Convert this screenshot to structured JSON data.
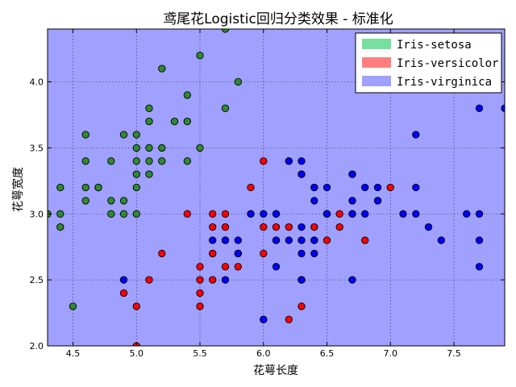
{
  "chart_data": {
    "type": "scatter",
    "title": "鸢尾花Logistic回归分类效果 - 标准化",
    "xlabel": "花萼长度",
    "ylabel": "花萼宽度",
    "xlim": [
      4.3,
      7.9
    ],
    "ylim": [
      2.0,
      4.4
    ],
    "xticks": [
      4.5,
      5.0,
      5.5,
      6.0,
      6.5,
      7.0,
      7.5
    ],
    "yticks": [
      2.0,
      2.5,
      3.0,
      3.5,
      4.0
    ],
    "xtick_labels": [
      "4.5",
      "5.0",
      "5.5",
      "6.0",
      "6.5",
      "7.0",
      "7.5"
    ],
    "ytick_labels": [
      "2.0",
      "2.5",
      "3.0",
      "3.5",
      "4.0"
    ],
    "grid": true,
    "legend_position": "top-right",
    "legend": [
      "Iris-setosa",
      "Iris-versicolor",
      "Iris-virginica"
    ],
    "region_colors": [
      "#77e0a0",
      "#ff7f7f",
      "#a0a0ff"
    ],
    "series": [
      {
        "name": "Iris-setosa",
        "color": "#2e8b2e",
        "points": [
          [
            5.1,
            3.5
          ],
          [
            4.9,
            3.0
          ],
          [
            4.7,
            3.2
          ],
          [
            4.6,
            3.1
          ],
          [
            5.0,
            3.6
          ],
          [
            5.4,
            3.9
          ],
          [
            4.6,
            3.4
          ],
          [
            5.0,
            3.4
          ],
          [
            4.4,
            2.9
          ],
          [
            4.9,
            3.1
          ],
          [
            5.4,
            3.7
          ],
          [
            4.8,
            3.4
          ],
          [
            4.8,
            3.0
          ],
          [
            4.3,
            3.0
          ],
          [
            5.8,
            4.0
          ],
          [
            5.7,
            4.4
          ],
          [
            5.1,
            3.8
          ],
          [
            5.7,
            3.8
          ],
          [
            5.4,
            3.4
          ],
          [
            5.1,
            3.7
          ],
          [
            4.6,
            3.6
          ],
          [
            5.1,
            3.3
          ],
          [
            5.0,
            3.0
          ],
          [
            5.2,
            3.5
          ],
          [
            5.2,
            3.4
          ],
          [
            4.7,
            3.2
          ],
          [
            5.2,
            4.1
          ],
          [
            5.5,
            4.2
          ],
          [
            5.0,
            3.2
          ],
          [
            5.5,
            3.5
          ],
          [
            4.4,
            3.0
          ],
          [
            4.5,
            2.3
          ],
          [
            4.4,
            3.2
          ],
          [
            5.0,
            3.5
          ],
          [
            5.3,
            3.7
          ],
          [
            5.0,
            3.3
          ],
          [
            4.8,
            3.1
          ],
          [
            4.6,
            3.2
          ],
          [
            5.1,
            3.4
          ],
          [
            4.9,
            3.6
          ]
        ]
      },
      {
        "name": "Iris-versicolor",
        "color": "#ff0000",
        "points": [
          [
            7.0,
            3.2
          ],
          [
            6.4,
            3.2
          ],
          [
            6.9,
            3.1
          ],
          [
            5.5,
            2.3
          ],
          [
            6.5,
            2.8
          ],
          [
            5.7,
            2.8
          ],
          [
            6.3,
            3.3
          ],
          [
            4.9,
            2.4
          ],
          [
            6.6,
            2.9
          ],
          [
            5.2,
            2.7
          ],
          [
            5.0,
            2.0
          ],
          [
            5.9,
            3.0
          ],
          [
            6.0,
            2.2
          ],
          [
            6.1,
            2.9
          ],
          [
            5.6,
            2.9
          ],
          [
            6.7,
            3.1
          ],
          [
            5.6,
            3.0
          ],
          [
            5.8,
            2.7
          ],
          [
            6.2,
            2.2
          ],
          [
            5.6,
            2.5
          ],
          [
            5.9,
            3.2
          ],
          [
            6.1,
            2.8
          ],
          [
            6.3,
            2.5
          ],
          [
            6.4,
            2.9
          ],
          [
            6.6,
            3.0
          ],
          [
            6.8,
            2.8
          ],
          [
            6.7,
            3.0
          ],
          [
            6.0,
            2.9
          ],
          [
            5.7,
            2.6
          ],
          [
            5.5,
            2.4
          ],
          [
            5.5,
            2.6
          ],
          [
            5.8,
            2.7
          ],
          [
            6.0,
            2.7
          ],
          [
            5.4,
            3.0
          ],
          [
            6.0,
            3.4
          ],
          [
            6.3,
            2.3
          ],
          [
            5.6,
            2.7
          ],
          [
            5.5,
            2.5
          ],
          [
            6.1,
            3.0
          ],
          [
            5.8,
            2.6
          ],
          [
            5.0,
            2.3
          ],
          [
            5.6,
            2.7
          ],
          [
            5.7,
            3.0
          ],
          [
            5.7,
            2.9
          ],
          [
            6.2,
            2.9
          ],
          [
            5.1,
            2.5
          ],
          [
            5.7,
            2.8
          ]
        ]
      },
      {
        "name": "Iris-virginica",
        "color": "#0000ff",
        "points": [
          [
            6.3,
            3.3
          ],
          [
            5.8,
            2.7
          ],
          [
            7.1,
            3.0
          ],
          [
            6.3,
            2.9
          ],
          [
            6.5,
            3.0
          ],
          [
            7.6,
            3.0
          ],
          [
            4.9,
            2.5
          ],
          [
            7.3,
            2.9
          ],
          [
            6.7,
            2.5
          ],
          [
            7.2,
            3.6
          ],
          [
            6.5,
            3.2
          ],
          [
            6.4,
            2.7
          ],
          [
            6.8,
            3.0
          ],
          [
            5.7,
            2.5
          ],
          [
            5.8,
            2.8
          ],
          [
            6.4,
            3.2
          ],
          [
            6.5,
            3.0
          ],
          [
            7.7,
            3.8
          ],
          [
            7.7,
            2.6
          ],
          [
            6.0,
            2.2
          ],
          [
            6.9,
            3.2
          ],
          [
            5.6,
            2.8
          ],
          [
            7.7,
            2.8
          ],
          [
            6.3,
            2.7
          ],
          [
            6.7,
            3.3
          ],
          [
            7.2,
            3.2
          ],
          [
            6.2,
            2.8
          ],
          [
            6.1,
            3.0
          ],
          [
            6.4,
            2.8
          ],
          [
            7.2,
            3.0
          ],
          [
            7.4,
            2.8
          ],
          [
            7.9,
            3.8
          ],
          [
            6.4,
            2.8
          ],
          [
            6.3,
            2.8
          ],
          [
            6.1,
            2.6
          ],
          [
            7.7,
            3.0
          ],
          [
            6.3,
            3.4
          ],
          [
            6.4,
            3.1
          ],
          [
            6.0,
            3.0
          ],
          [
            6.9,
            3.1
          ],
          [
            6.7,
            3.1
          ],
          [
            6.9,
            3.1
          ],
          [
            6.8,
            3.2
          ],
          [
            6.7,
            3.3
          ],
          [
            6.7,
            3.0
          ],
          [
            6.3,
            2.5
          ],
          [
            6.5,
            3.0
          ],
          [
            6.2,
            3.4
          ],
          [
            5.9,
            3.0
          ],
          [
            6.2,
            3.4
          ],
          [
            6.1,
            2.8
          ],
          [
            6.3,
            2.5
          ],
          [
            5.7,
            2.8
          ]
        ]
      }
    ]
  }
}
